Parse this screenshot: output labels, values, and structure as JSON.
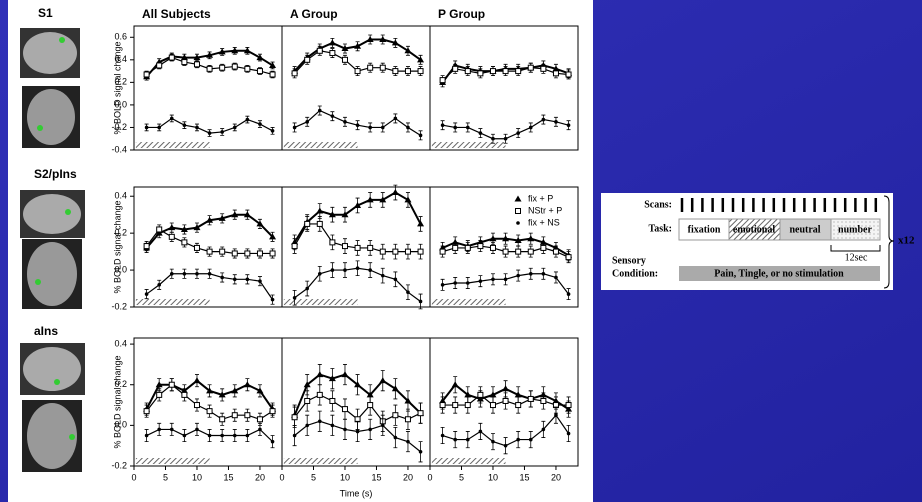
{
  "figure": {
    "xlabel": "Time (s)",
    "row_labels": [
      "S1",
      "S2/pIns",
      "aIns"
    ]
  },
  "chart_data": [
    {
      "type": "line",
      "title": "All Subjects",
      "ylabel": "% BOLD signal change",
      "x": [
        2,
        4,
        6,
        8,
        10,
        12,
        14,
        16,
        18,
        20,
        22
      ],
      "xlim": [
        0,
        23.5
      ],
      "ylim": [
        -0.4,
        0.7
      ],
      "yticks": [
        -0.4,
        -0.2,
        {
          "value": 0,
          "label": "0.0"
        },
        0.2,
        0.4,
        0.6
      ],
      "series": [
        {
          "name": "fix + P",
          "color": "#000000",
          "marker": "triangle",
          "error": 0.03,
          "values": [
            0.25,
            0.38,
            0.43,
            0.42,
            0.42,
            0.44,
            0.47,
            0.48,
            0.48,
            0.42,
            0.35
          ]
        },
        {
          "name": "NStr + P",
          "color": "#000000",
          "marker": "square",
          "error": 0.03,
          "values": [
            0.27,
            0.35,
            0.42,
            0.38,
            0.36,
            0.32,
            0.33,
            0.34,
            0.32,
            0.3,
            0.27
          ]
        },
        {
          "name": "fix + NS",
          "color": "#000000",
          "marker": "dot",
          "error": 0.03,
          "values": [
            -0.2,
            -0.2,
            -0.12,
            -0.18,
            -0.2,
            -0.25,
            -0.24,
            -0.2,
            -0.13,
            -0.17,
            -0.23
          ]
        }
      ]
    },
    {
      "type": "line",
      "title": "A Group",
      "x": [
        2,
        4,
        6,
        8,
        10,
        12,
        14,
        16,
        18,
        20,
        22
      ],
      "xlim": [
        0,
        23.5
      ],
      "ylim": [
        -0.4,
        0.7
      ],
      "series": [
        {
          "name": "fix + P",
          "color": "#000000",
          "marker": "triangle",
          "error": 0.04,
          "values": [
            0.3,
            0.42,
            0.5,
            0.55,
            0.5,
            0.52,
            0.58,
            0.58,
            0.55,
            0.48,
            0.4
          ]
        },
        {
          "name": "NStr + P",
          "color": "#000000",
          "marker": "square",
          "error": 0.04,
          "values": [
            0.28,
            0.4,
            0.48,
            0.46,
            0.4,
            0.3,
            0.33,
            0.33,
            0.3,
            0.3,
            0.3
          ]
        },
        {
          "name": "fix + NS",
          "color": "#000000",
          "marker": "dot",
          "error": 0.04,
          "values": [
            -0.2,
            -0.15,
            -0.05,
            -0.1,
            -0.15,
            -0.18,
            -0.2,
            -0.2,
            -0.12,
            -0.2,
            -0.27
          ]
        }
      ]
    },
    {
      "type": "line",
      "title": "P Group",
      "x": [
        2,
        4,
        6,
        8,
        10,
        12,
        14,
        16,
        18,
        20,
        22
      ],
      "xlim": [
        0,
        23.5
      ],
      "ylim": [
        -0.4,
        0.7
      ],
      "series": [
        {
          "name": "fix + P",
          "color": "#000000",
          "marker": "triangle",
          "error": 0.04,
          "values": [
            0.2,
            0.35,
            0.32,
            0.3,
            0.3,
            0.32,
            0.32,
            0.33,
            0.35,
            0.32,
            0.28
          ]
        },
        {
          "name": "NStr + P",
          "color": "#000000",
          "marker": "square",
          "error": 0.04,
          "values": [
            0.22,
            0.32,
            0.3,
            0.28,
            0.3,
            0.3,
            0.3,
            0.33,
            0.32,
            0.28,
            0.27
          ]
        },
        {
          "name": "fix + NS",
          "color": "#000000",
          "marker": "dot",
          "error": 0.04,
          "values": [
            -0.18,
            -0.2,
            -0.2,
            -0.25,
            -0.3,
            -0.3,
            -0.25,
            -0.2,
            -0.13,
            -0.15,
            -0.18
          ]
        }
      ]
    },
    {
      "type": "line",
      "ylabel": "% BOLD signal change",
      "x": [
        2,
        4,
        6,
        8,
        10,
        12,
        14,
        16,
        18,
        20,
        22
      ],
      "xlim": [
        0,
        23.5
      ],
      "ylim": [
        -0.2,
        0.45
      ],
      "yticks": [
        -0.2,
        {
          "value": 0,
          "label": "0.0"
        },
        0.2,
        0.4
      ],
      "series": [
        {
          "name": "fix + P",
          "color": "#000000",
          "marker": "triangle",
          "error": 0.025,
          "values": [
            0.12,
            0.2,
            0.23,
            0.22,
            0.23,
            0.27,
            0.28,
            0.3,
            0.3,
            0.25,
            0.18
          ]
        },
        {
          "name": "NStr + P",
          "color": "#000000",
          "marker": "square",
          "error": 0.025,
          "values": [
            0.13,
            0.22,
            0.18,
            0.15,
            0.12,
            0.1,
            0.1,
            0.09,
            0.09,
            0.09,
            0.09
          ]
        },
        {
          "name": "fix + NS",
          "color": "#000000",
          "marker": "dot",
          "error": 0.025,
          "values": [
            -0.13,
            -0.08,
            -0.02,
            -0.02,
            -0.02,
            -0.02,
            -0.04,
            -0.05,
            -0.05,
            -0.06,
            -0.16
          ]
        }
      ]
    },
    {
      "type": "line",
      "x": [
        2,
        4,
        6,
        8,
        10,
        12,
        14,
        16,
        18,
        20,
        22
      ],
      "xlim": [
        0,
        23.5
      ],
      "ylim": [
        -0.2,
        0.45
      ],
      "series": [
        {
          "name": "fix + P",
          "color": "#000000",
          "marker": "triangle",
          "error": 0.04,
          "values": [
            0.15,
            0.26,
            0.32,
            0.3,
            0.3,
            0.35,
            0.38,
            0.38,
            0.42,
            0.38,
            0.25
          ]
        },
        {
          "name": "NStr + P",
          "color": "#000000",
          "marker": "square",
          "error": 0.04,
          "values": [
            0.13,
            0.25,
            0.25,
            0.15,
            0.13,
            0.12,
            0.12,
            0.1,
            0.1,
            0.1,
            0.1
          ]
        },
        {
          "name": "fix + NS",
          "color": "#000000",
          "marker": "dot",
          "error": 0.04,
          "values": [
            -0.15,
            -0.1,
            -0.02,
            0.0,
            0.0,
            0.01,
            0.0,
            -0.03,
            -0.05,
            -0.12,
            -0.17
          ]
        }
      ]
    },
    {
      "type": "line",
      "legend": "upper right",
      "x": [
        2,
        4,
        6,
        8,
        10,
        12,
        14,
        16,
        18,
        20,
        22
      ],
      "xlim": [
        0,
        23.5
      ],
      "ylim": [
        -0.2,
        0.45
      ],
      "series": [
        {
          "name": "fix + P",
          "color": "#000000",
          "marker": "triangle",
          "error": 0.03,
          "values": [
            0.12,
            0.15,
            0.13,
            0.15,
            0.17,
            0.17,
            0.16,
            0.17,
            0.15,
            0.12,
            0.08
          ]
        },
        {
          "name": "NStr + P",
          "color": "#000000",
          "marker": "square",
          "error": 0.03,
          "values": [
            0.1,
            0.12,
            0.12,
            0.13,
            0.12,
            0.1,
            0.1,
            0.1,
            0.12,
            0.1,
            0.07
          ]
        },
        {
          "name": "fix + NS",
          "color": "#000000",
          "marker": "dot",
          "error": 0.03,
          "values": [
            -0.08,
            -0.07,
            -0.07,
            -0.06,
            -0.05,
            -0.05,
            -0.03,
            -0.02,
            -0.02,
            -0.04,
            -0.13
          ]
        }
      ]
    },
    {
      "type": "line",
      "ylabel": "% BOLD signal change",
      "x": [
        2,
        4,
        6,
        8,
        10,
        12,
        14,
        16,
        18,
        20,
        22
      ],
      "xlim": [
        0,
        23.5
      ],
      "ylim": [
        -0.2,
        0.43
      ],
      "xticks": [
        0,
        5,
        10,
        15,
        20
      ],
      "yticks": [
        -0.2,
        {
          "value": 0,
          "label": "0.0"
        },
        0.2,
        0.4
      ],
      "series": [
        {
          "name": "fix + P",
          "color": "#000000",
          "marker": "triangle",
          "error": 0.03,
          "values": [
            0.08,
            0.2,
            0.2,
            0.17,
            0.22,
            0.17,
            0.15,
            0.17,
            0.2,
            0.17,
            0.08
          ]
        },
        {
          "name": "NStr + P",
          "color": "#000000",
          "marker": "square",
          "error": 0.03,
          "values": [
            0.07,
            0.15,
            0.2,
            0.15,
            0.1,
            0.07,
            0.03,
            0.05,
            0.05,
            0.03,
            0.07
          ]
        },
        {
          "name": "fix + NS",
          "color": "#000000",
          "marker": "dot",
          "error": 0.03,
          "values": [
            -0.05,
            -0.02,
            -0.02,
            -0.05,
            -0.02,
            -0.05,
            -0.05,
            -0.05,
            -0.05,
            -0.02,
            -0.08
          ]
        }
      ]
    },
    {
      "type": "line",
      "x": [
        2,
        4,
        6,
        8,
        10,
        12,
        14,
        16,
        18,
        20,
        22
      ],
      "xlim": [
        0,
        23.5
      ],
      "ylim": [
        -0.2,
        0.43
      ],
      "xticks": [
        0,
        5,
        10,
        15,
        20
      ],
      "series": [
        {
          "name": "fix + P",
          "color": "#000000",
          "marker": "triangle",
          "error": 0.05,
          "values": [
            0.05,
            0.2,
            0.25,
            0.23,
            0.25,
            0.2,
            0.15,
            0.22,
            0.18,
            0.12,
            0.06
          ]
        },
        {
          "name": "NStr + P",
          "color": "#000000",
          "marker": "square",
          "error": 0.05,
          "values": [
            0.04,
            0.12,
            0.15,
            0.12,
            0.08,
            0.03,
            0.1,
            0.02,
            0.05,
            0.03,
            0.06
          ]
        },
        {
          "name": "fix + NS",
          "color": "#000000",
          "marker": "dot",
          "error": 0.05,
          "values": [
            -0.05,
            0.0,
            0.02,
            0.0,
            -0.02,
            -0.03,
            -0.02,
            0.0,
            -0.06,
            -0.08,
            -0.13
          ]
        }
      ]
    },
    {
      "type": "line",
      "x": [
        2,
        4,
        6,
        8,
        10,
        12,
        14,
        16,
        18,
        20,
        22
      ],
      "xlim": [
        0,
        23.5
      ],
      "ylim": [
        -0.2,
        0.43
      ],
      "xticks": [
        0,
        5,
        10,
        15,
        20
      ],
      "series": [
        {
          "name": "fix + P",
          "color": "#000000",
          "marker": "triangle",
          "error": 0.04,
          "values": [
            0.12,
            0.2,
            0.15,
            0.13,
            0.15,
            0.18,
            0.15,
            0.13,
            0.15,
            0.12,
            0.08
          ]
        },
        {
          "name": "NStr + P",
          "color": "#000000",
          "marker": "square",
          "error": 0.04,
          "values": [
            0.1,
            0.1,
            0.1,
            0.15,
            0.1,
            0.12,
            0.1,
            0.13,
            0.12,
            0.1,
            0.1
          ]
        },
        {
          "name": "fix + NS",
          "color": "#000000",
          "marker": "dot",
          "error": 0.04,
          "values": [
            -0.05,
            -0.07,
            -0.07,
            -0.03,
            -0.08,
            -0.1,
            -0.07,
            -0.07,
            -0.02,
            0.05,
            -0.04
          ]
        }
      ]
    }
  ],
  "diagram": {
    "scans_label": "Scans:",
    "task_label": "Task:",
    "tasks": [
      "fixation",
      "emotional",
      "neutral",
      "number"
    ],
    "scale_label": "12sec",
    "sensory_label": "Sensory",
    "condition_label": "Condition:",
    "condition_bar": "Pain, Tingle, or no stimulation",
    "repeat": "x12"
  }
}
